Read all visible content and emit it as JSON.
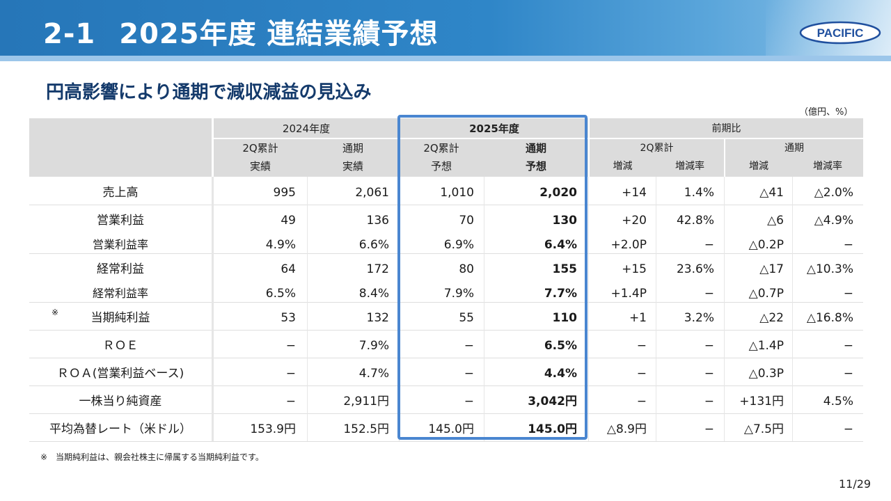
{
  "header": {
    "title_num": "2-1",
    "title_text": "2025年度 連結業績予想",
    "logo_text": "PACIFIC"
  },
  "subtitle": "円高影響により通期で減収減益の見込み",
  "unit": "（億円、%）",
  "table": {
    "groups": {
      "fy2024": "2024年度",
      "fy2025": "2025年度",
      "yoy": "前期比",
      "yoy_2q": "2Q累計",
      "yoy_full": "通期"
    },
    "cols": {
      "a": [
        "2Q累計",
        "実績"
      ],
      "b": [
        "通期",
        "実績"
      ],
      "c": [
        "2Q累計",
        "予想"
      ],
      "d": [
        "通期",
        "予想"
      ],
      "e": "増減",
      "f": "増減率",
      "g": "増減",
      "h": "増減率"
    },
    "rows": [
      {
        "label": "売上高",
        "note": "",
        "vals": [
          "995",
          "2,061",
          "1,010",
          "2,020",
          "+14",
          "1.4%",
          "△41",
          "△2.0%"
        ]
      },
      {
        "label": "営業利益",
        "note": "",
        "vals": [
          "49",
          "136",
          "70",
          "130",
          "+20",
          "42.8%",
          "△6",
          "△4.9%"
        ]
      },
      {
        "label": "営業利益率",
        "note": "",
        "vals": [
          "4.9%",
          "6.6%",
          "6.9%",
          "6.4%",
          "+2.0P",
          "−",
          "△0.2P",
          "−"
        ]
      },
      {
        "label": "経常利益",
        "note": "",
        "vals": [
          "64",
          "172",
          "80",
          "155",
          "+15",
          "23.6%",
          "△17",
          "△10.3%"
        ]
      },
      {
        "label": "経常利益率",
        "note": "",
        "vals": [
          "6.5%",
          "8.4%",
          "7.9%",
          "7.7%",
          "+1.4P",
          "−",
          "△0.7P",
          "−"
        ]
      },
      {
        "label": "当期純利益",
        "note": "※",
        "vals": [
          "53",
          "132",
          "55",
          "110",
          "+1",
          "3.2%",
          "△22",
          "△16.8%"
        ]
      },
      {
        "label": "ＲＯＥ",
        "note": "",
        "vals": [
          "−",
          "7.9%",
          "−",
          "6.5%",
          "−",
          "−",
          "△1.4P",
          "−"
        ]
      },
      {
        "label": "ＲＯＡ(営業利益ベース)",
        "note": "",
        "vals": [
          "−",
          "4.7%",
          "−",
          "4.4%",
          "−",
          "−",
          "△0.3P",
          "−"
        ]
      },
      {
        "label": "一株当り純資産",
        "note": "",
        "vals": [
          "−",
          "2,911円",
          "−",
          "3,042円",
          "−",
          "−",
          "+131円",
          "4.5%"
        ]
      },
      {
        "label": "平均為替レート（米ドル）",
        "note": "",
        "vals": [
          "153.9円",
          "152.5円",
          "145.0円",
          "145.0円",
          "△8.9円",
          "−",
          "△7.5円",
          "−"
        ]
      }
    ]
  },
  "footnote": "※　当期純利益は、親会社株主に帰属する当期純利益です。",
  "page_number": "11/29",
  "colors": {
    "header_blue": "#2676b8",
    "subtitle_navy": "#143a6b",
    "highlight_border": "#4a86d0",
    "header_cell_gray": "#dcdcdc"
  }
}
